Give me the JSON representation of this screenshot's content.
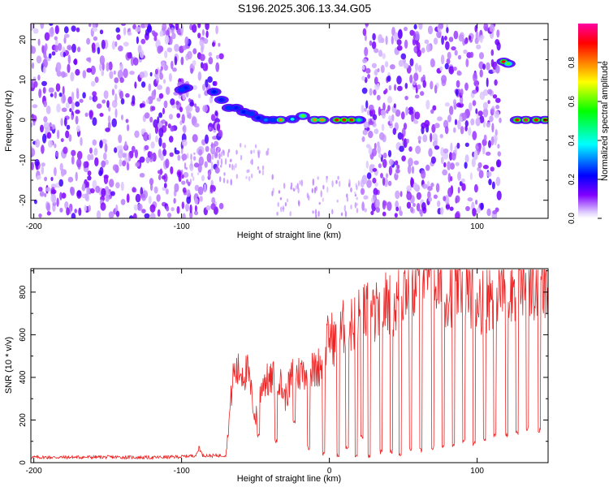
{
  "title": "S196.2025.306.13.34.G05",
  "chart_data": [
    {
      "type": "heatmap",
      "title": "",
      "xlabel": "Height of straight line (km)",
      "ylabel": "Frequency (Hz)",
      "xlim": [
        -202,
        148
      ],
      "ylim": [
        -24.5,
        24
      ],
      "xticks": [
        -200,
        -100,
        0,
        100
      ],
      "yticks": [
        -20,
        -10,
        0,
        10,
        20
      ],
      "colorbar": {
        "label": "Normalized spectral amplitude",
        "range": [
          0,
          1
        ],
        "ticks": [
          0.0,
          0.2,
          0.4,
          0.6,
          0.8
        ],
        "colors": [
          "#e0d0ff",
          "#8000ff",
          "#0000ff",
          "#00ffff",
          "#00ff00",
          "#ffff00",
          "#ff8000",
          "#ff0000",
          "#ff00ff"
        ]
      },
      "noise_regions": [
        [
          -202,
          -73
        ],
        [
          22,
          116
        ]
      ],
      "track": [
        {
          "x": -100,
          "y": 7.5,
          "amp": 0.25
        },
        {
          "x": -97,
          "y": 8,
          "amp": 0.2
        },
        {
          "x": -78,
          "y": 7,
          "amp": 0.22
        },
        {
          "x": -73,
          "y": 5,
          "amp": 0.2
        },
        {
          "x": -68,
          "y": 3,
          "amp": 0.25
        },
        {
          "x": -63,
          "y": 3,
          "amp": 0.2
        },
        {
          "x": -58,
          "y": 2,
          "amp": 0.22
        },
        {
          "x": -53,
          "y": 1.5,
          "amp": 0.25
        },
        {
          "x": -48,
          "y": 0.5,
          "amp": 0.22
        },
        {
          "x": -43,
          "y": 0,
          "amp": 0.3
        },
        {
          "x": -38,
          "y": 0,
          "amp": 0.25
        },
        {
          "x": -33,
          "y": 0,
          "amp": 0.8
        },
        {
          "x": -25,
          "y": 0.2,
          "amp": 0.4
        },
        {
          "x": -18,
          "y": 1.0,
          "amp": 0.6
        },
        {
          "x": -10,
          "y": 0,
          "amp": 0.8
        },
        {
          "x": -5,
          "y": 0,
          "amp": 0.8
        },
        {
          "x": 5,
          "y": 0,
          "amp": 0.9
        },
        {
          "x": 10,
          "y": 0,
          "amp": 0.9
        },
        {
          "x": 15,
          "y": 0,
          "amp": 0.9
        },
        {
          "x": 20,
          "y": 0,
          "amp": 0.5
        },
        {
          "x": 118,
          "y": 14.5,
          "amp": 0.9
        },
        {
          "x": 121,
          "y": 14,
          "amp": 0.6
        },
        {
          "x": 127,
          "y": 0,
          "amp": 0.9
        },
        {
          "x": 133,
          "y": 0,
          "amp": 0.95
        },
        {
          "x": 140,
          "y": 0,
          "amp": 0.9
        },
        {
          "x": 146,
          "y": 0,
          "amp": 0.9
        }
      ]
    },
    {
      "type": "line",
      "title": "",
      "xlabel": "Height of straight line (km)",
      "ylabel": "SNR (10 * v/v)",
      "xlim": [
        -202,
        148
      ],
      "ylim": [
        0,
        910
      ],
      "xticks": [
        -200,
        -100,
        0,
        100
      ],
      "yticks": [
        0,
        200,
        400,
        600,
        800
      ],
      "color": "#ee2222",
      "series": [
        {
          "name": "SNR",
          "x": [
            -202,
            -180,
            -150,
            -120,
            -100,
            -90,
            -88,
            -86,
            -80,
            -70,
            -65,
            -60,
            -55,
            -50,
            -45,
            -40,
            -35,
            -30,
            -25,
            -20,
            -15,
            -10,
            -5,
            0,
            5,
            10,
            15,
            20,
            25,
            30,
            35,
            40,
            45,
            50,
            55,
            60,
            65,
            70,
            75,
            80,
            85,
            90,
            95,
            100,
            105,
            110,
            115,
            120,
            125,
            130,
            135,
            140,
            145,
            148
          ],
          "y": [
            25,
            25,
            26,
            24,
            28,
            35,
            75,
            35,
            32,
            35,
            420,
            430,
            420,
            200,
            390,
            380,
            420,
            300,
            410,
            420,
            440,
            430,
            470,
            600,
            560,
            640,
            650,
            680,
            700,
            690,
            720,
            760,
            740,
            820,
            840,
            880,
            890,
            860,
            840,
            800,
            820,
            850,
            810,
            780,
            760,
            800,
            810,
            830,
            840,
            860,
            850,
            820,
            800,
            810
          ]
        }
      ],
      "dropouts": [
        {
          "x": -48,
          "y": 120
        },
        {
          "x": -36,
          "y": 90
        },
        {
          "x": -24,
          "y": 180
        },
        {
          "x": -14,
          "y": 60
        },
        {
          "x": -4,
          "y": 30
        },
        {
          "x": 6,
          "y": 20
        },
        {
          "x": 12,
          "y": 60
        },
        {
          "x": 18,
          "y": 20
        },
        {
          "x": 22,
          "y": 110
        },
        {
          "x": 27,
          "y": 20
        },
        {
          "x": 35,
          "y": 40
        },
        {
          "x": 42,
          "y": 40
        },
        {
          "x": 48,
          "y": 30
        },
        {
          "x": 55,
          "y": 55
        },
        {
          "x": 62,
          "y": 50
        },
        {
          "x": 70,
          "y": 60
        },
        {
          "x": 77,
          "y": 70
        },
        {
          "x": 84,
          "y": 70
        },
        {
          "x": 91,
          "y": 90
        },
        {
          "x": 98,
          "y": 80
        },
        {
          "x": 105,
          "y": 100
        },
        {
          "x": 112,
          "y": 120
        },
        {
          "x": 120,
          "y": 120
        },
        {
          "x": 127,
          "y": 130
        },
        {
          "x": 134,
          "y": 150
        },
        {
          "x": 142,
          "y": 140
        }
      ]
    }
  ]
}
